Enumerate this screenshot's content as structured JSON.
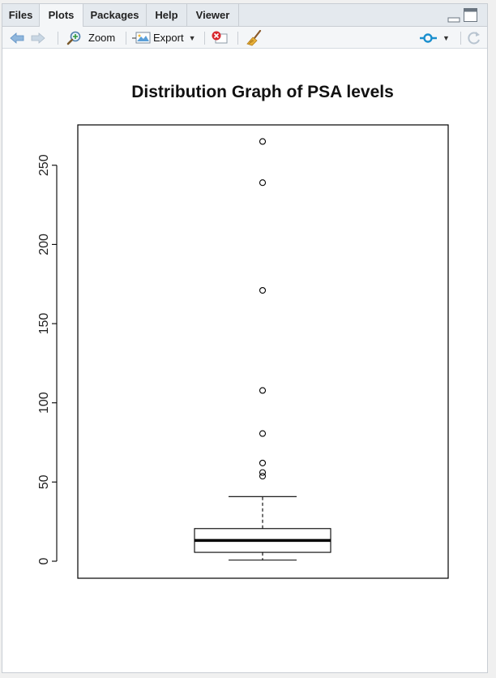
{
  "tabs": [
    {
      "label": "Files",
      "active": false
    },
    {
      "label": "Plots",
      "active": true
    },
    {
      "label": "Packages",
      "active": false
    },
    {
      "label": "Help",
      "active": false
    },
    {
      "label": "Viewer",
      "active": false
    }
  ],
  "toolbar": {
    "zoom_label": "Zoom",
    "export_label": "Export"
  },
  "chart_data": {
    "type": "boxplot",
    "title": "Distribution Graph of PSA levels",
    "xlabel": "",
    "ylabel": "",
    "ylim": [
      0,
      270
    ],
    "yticks": [
      0,
      50,
      100,
      150,
      200,
      250
    ],
    "ytick_labels": [
      "0",
      "50",
      "100",
      "150",
      "200",
      "250"
    ],
    "box": {
      "whisker_low": 0.7,
      "q1": 5.6,
      "median": 13.1,
      "q3": 20.6,
      "whisker_high": 40.8
    },
    "outliers": [
      265,
      239,
      171,
      107.8,
      80.6,
      62,
      56,
      53.7
    ],
    "grid": false,
    "legend": "none"
  }
}
